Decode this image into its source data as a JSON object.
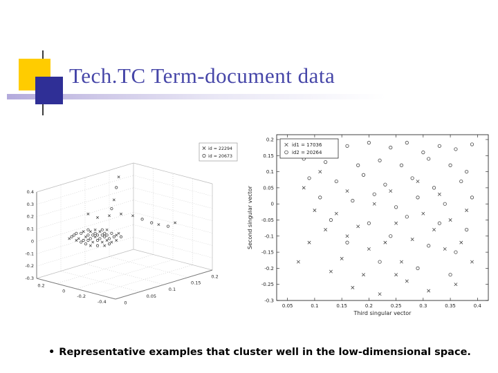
{
  "slide": {
    "title": "Tech.TC Term-document data",
    "bullet_marker": "•",
    "bullet_text": "Representative examples that cluster well in the low-dimensional space."
  },
  "colors": {
    "title_text": "#4646a8",
    "accent_yellow": "#ffcc00",
    "accent_indigo": "#2f2f96",
    "marker": "#444444"
  },
  "chart_data": [
    {
      "type": "scatter",
      "projection": "3d",
      "grid": true,
      "legend_position": "top-right",
      "legend": [
        {
          "marker": "x",
          "label": "id = 22294"
        },
        {
          "marker": "o",
          "label": "id = 20673"
        }
      ],
      "z_tick_labels": [
        "0.4",
        "0.3",
        "0.2",
        "0.1",
        "0",
        "-0.1",
        "-0.2",
        "-0.3"
      ],
      "x_tick_labels": [
        "0.2",
        "0",
        "-0.2",
        "-0.4"
      ],
      "y_tick_labels": [
        "0",
        "0.05",
        "0.1",
        "0.15",
        "0.2"
      ],
      "series": [
        {
          "name": "id = 22294",
          "marker": "x",
          "points_norm": [
            [
              0.32,
              0.59
            ],
            [
              0.35,
              0.58
            ],
            [
              0.37,
              0.55
            ],
            [
              0.38,
              0.61
            ],
            [
              0.39,
              0.58
            ],
            [
              0.41,
              0.55
            ],
            [
              0.42,
              0.61
            ],
            [
              0.44,
              0.6
            ],
            [
              0.46,
              0.61
            ],
            [
              0.48,
              0.57
            ],
            [
              0.37,
              0.63
            ],
            [
              0.43,
              0.63
            ],
            [
              0.31,
              0.6
            ],
            [
              0.28,
              0.59
            ],
            [
              0.48,
              0.6
            ],
            [
              0.34,
              0.55
            ],
            [
              0.39,
              0.54
            ],
            [
              0.44,
              0.54
            ],
            [
              0.49,
              0.56
            ],
            [
              0.47,
              0.37
            ],
            [
              0.49,
              0.24
            ],
            [
              0.45,
              0.46
            ],
            [
              0.5,
              0.45
            ],
            [
              0.66,
              0.51
            ],
            [
              0.73,
              0.5
            ],
            [
              0.55,
              0.46
            ],
            [
              0.4,
              0.47
            ],
            [
              0.36,
              0.45
            ]
          ]
        },
        {
          "name": "id = 20673",
          "marker": "o",
          "points_norm": [
            [
              0.3,
              0.57
            ],
            [
              0.33,
              0.56
            ],
            [
              0.34,
              0.6
            ],
            [
              0.36,
              0.57
            ],
            [
              0.36,
              0.6
            ],
            [
              0.37,
              0.59
            ],
            [
              0.38,
              0.57
            ],
            [
              0.39,
              0.56
            ],
            [
              0.4,
              0.6
            ],
            [
              0.4,
              0.57
            ],
            [
              0.41,
              0.59
            ],
            [
              0.42,
              0.57
            ],
            [
              0.43,
              0.58
            ],
            [
              0.43,
              0.56
            ],
            [
              0.44,
              0.57
            ],
            [
              0.45,
              0.59
            ],
            [
              0.46,
              0.56
            ],
            [
              0.47,
              0.58
            ],
            [
              0.35,
              0.62
            ],
            [
              0.4,
              0.63
            ],
            [
              0.33,
              0.61
            ],
            [
              0.29,
              0.58
            ],
            [
              0.45,
              0.62
            ],
            [
              0.5,
              0.58
            ],
            [
              0.36,
              0.54
            ],
            [
              0.42,
              0.54
            ],
            [
              0.31,
              0.56
            ],
            [
              0.46,
              0.42
            ],
            [
              0.48,
              0.3
            ],
            [
              0.63,
              0.5
            ],
            [
              0.7,
              0.52
            ],
            [
              0.59,
              0.48
            ]
          ]
        }
      ]
    },
    {
      "type": "scatter",
      "xlabel": "Third singular vector",
      "ylabel": "Second singular vector",
      "xlim": [
        0.03,
        0.42
      ],
      "ylim": [
        -0.3,
        0.215
      ],
      "x_tick_labels": [
        "0.05",
        "0.1",
        "0.15",
        "0.2",
        "0.25",
        "0.3",
        "0.35",
        "0.4"
      ],
      "y_tick_labels": [
        "0.2",
        "0.15",
        "0.1",
        "0.05",
        "0",
        "-0.05",
        "-0.1",
        "-0.15",
        "-0.2",
        "-0.25",
        "-0.3"
      ],
      "legend_position": "top-left",
      "legend": [
        {
          "marker": "x",
          "label": "id1 = 17036"
        },
        {
          "marker": "o",
          "label": "id2 = 20264"
        }
      ],
      "series": [
        {
          "name": "id1 = 17036",
          "marker": "x",
          "points": [
            [
              0.08,
              0.05
            ],
            [
              0.1,
              -0.02
            ],
            [
              0.12,
              -0.08
            ],
            [
              0.09,
              -0.12
            ],
            [
              0.14,
              -0.03
            ],
            [
              0.16,
              0.04
            ],
            [
              0.18,
              -0.07
            ],
            [
              0.2,
              -0.14
            ],
            [
              0.11,
              0.1
            ],
            [
              0.15,
              -0.17
            ],
            [
              0.19,
              -0.22
            ],
            [
              0.23,
              -0.12
            ],
            [
              0.25,
              -0.06
            ],
            [
              0.21,
              0.0
            ],
            [
              0.26,
              -0.18
            ],
            [
              0.28,
              -0.11
            ],
            [
              0.3,
              -0.03
            ],
            [
              0.24,
              0.04
            ],
            [
              0.32,
              -0.08
            ],
            [
              0.34,
              -0.14
            ],
            [
              0.27,
              -0.24
            ],
            [
              0.31,
              -0.27
            ],
            [
              0.17,
              -0.26
            ],
            [
              0.13,
              -0.21
            ],
            [
              0.35,
              -0.05
            ],
            [
              0.37,
              -0.12
            ],
            [
              0.39,
              -0.18
            ],
            [
              0.36,
              -0.25
            ],
            [
              0.22,
              -0.28
            ],
            [
              0.07,
              -0.18
            ],
            [
              0.29,
              0.07
            ],
            [
              0.33,
              0.03
            ],
            [
              0.38,
              -0.02
            ],
            [
              0.16,
              -0.1
            ],
            [
              0.25,
              -0.22
            ]
          ]
        },
        {
          "name": "id2 = 20264",
          "marker": "o",
          "points": [
            [
              0.07,
              0.19
            ],
            [
              0.1,
              0.185
            ],
            [
              0.13,
              0.17
            ],
            [
              0.16,
              0.18
            ],
            [
              0.2,
              0.19
            ],
            [
              0.24,
              0.175
            ],
            [
              0.27,
              0.19
            ],
            [
              0.3,
              0.16
            ],
            [
              0.33,
              0.18
            ],
            [
              0.36,
              0.17
            ],
            [
              0.39,
              0.185
            ],
            [
              0.08,
              0.14
            ],
            [
              0.12,
              0.13
            ],
            [
              0.18,
              0.12
            ],
            [
              0.22,
              0.135
            ],
            [
              0.26,
              0.12
            ],
            [
              0.31,
              0.14
            ],
            [
              0.35,
              0.12
            ],
            [
              0.38,
              0.1
            ],
            [
              0.09,
              0.08
            ],
            [
              0.14,
              0.07
            ],
            [
              0.19,
              0.09
            ],
            [
              0.23,
              0.06
            ],
            [
              0.28,
              0.08
            ],
            [
              0.32,
              0.05
            ],
            [
              0.37,
              0.07
            ],
            [
              0.11,
              0.02
            ],
            [
              0.17,
              0.01
            ],
            [
              0.21,
              0.03
            ],
            [
              0.25,
              -0.01
            ],
            [
              0.29,
              0.02
            ],
            [
              0.34,
              0.0
            ],
            [
              0.39,
              0.02
            ],
            [
              0.13,
              -0.05
            ],
            [
              0.2,
              -0.06
            ],
            [
              0.27,
              -0.04
            ],
            [
              0.33,
              -0.06
            ],
            [
              0.38,
              -0.08
            ],
            [
              0.16,
              -0.12
            ],
            [
              0.24,
              -0.1
            ],
            [
              0.31,
              -0.13
            ],
            [
              0.36,
              -0.15
            ],
            [
              0.22,
              -0.18
            ],
            [
              0.29,
              -0.2
            ],
            [
              0.35,
              -0.22
            ]
          ]
        }
      ]
    }
  ]
}
